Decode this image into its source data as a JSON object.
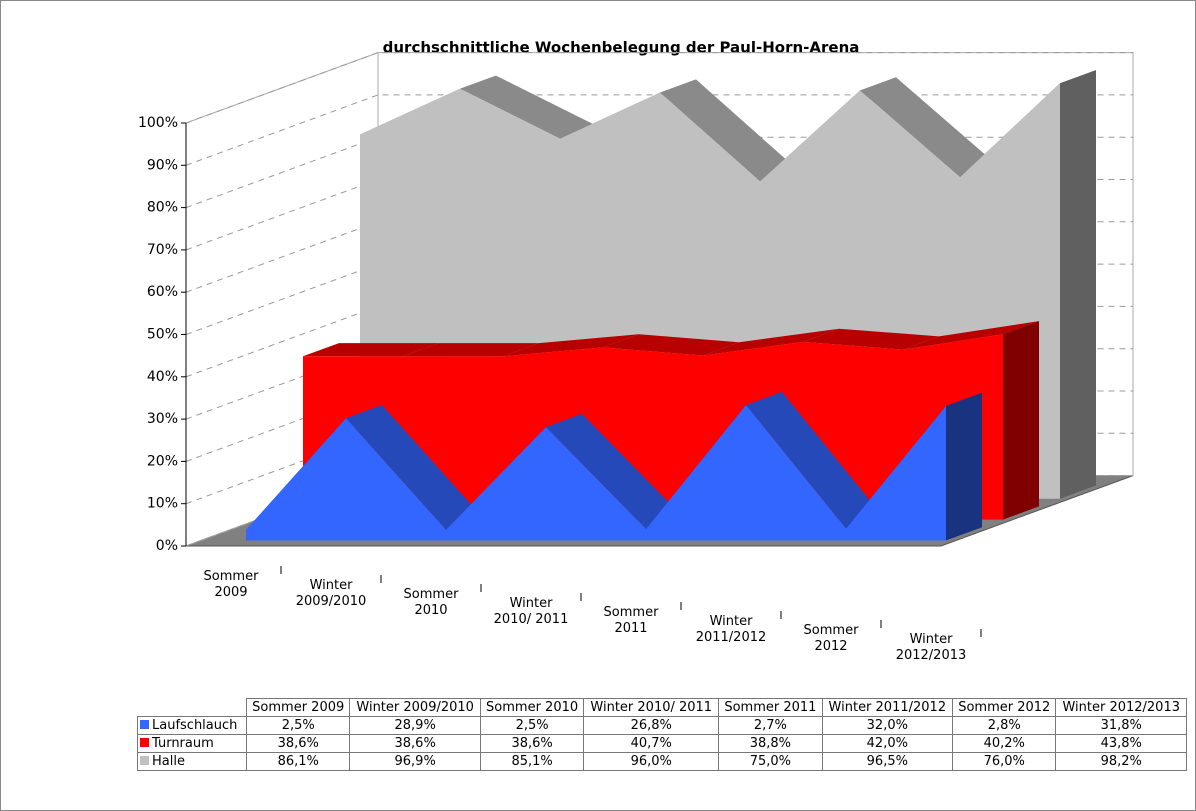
{
  "chart_data": {
    "type": "area3d",
    "title": "durchschnittliche Wochenbelegung der Paul-Horn-Arena",
    "categories": [
      "Sommer 2009",
      "Winter 2009/2010",
      "Sommer 2010",
      "Winter 2010/ 2011",
      "Sommer 2011",
      "Winter 2011/2012",
      "Sommer 2012",
      "Winter 2012/2013"
    ],
    "series": [
      {
        "name": "Laufschlauch",
        "color": "#3366ff",
        "values": [
          2.5,
          28.9,
          2.5,
          26.8,
          2.7,
          32.0,
          2.8,
          31.8
        ],
        "value_labels": [
          "2,5%",
          "28,9%",
          "2,5%",
          "26,8%",
          "2,7%",
          "32,0%",
          "2,8%",
          "31,8%"
        ]
      },
      {
        "name": "Turnraum",
        "color": "#ff0000",
        "values": [
          38.6,
          38.6,
          38.6,
          40.7,
          38.8,
          42.0,
          40.2,
          43.8
        ],
        "value_labels": [
          "38,6%",
          "38,6%",
          "38,6%",
          "40,7%",
          "38,8%",
          "42,0%",
          "40,2%",
          "43,8%"
        ]
      },
      {
        "name": "Halle",
        "color": "#c0c0c0",
        "values": [
          86.1,
          96.9,
          85.1,
          96.0,
          75.0,
          96.5,
          76.0,
          98.2
        ],
        "value_labels": [
          "86,1%",
          "96,9%",
          "85,1%",
          "96,0%",
          "75,0%",
          "96,5%",
          "76,0%",
          "98,2%"
        ]
      }
    ],
    "ylim": [
      0,
      100
    ],
    "yticks": [
      {
        "value": 0,
        "label": "0%"
      },
      {
        "value": 10,
        "label": "10%"
      },
      {
        "value": 20,
        "label": "20%"
      },
      {
        "value": 30,
        "label": "30%"
      },
      {
        "value": 40,
        "label": "40%"
      },
      {
        "value": 50,
        "label": "50%"
      },
      {
        "value": 60,
        "label": "60%"
      },
      {
        "value": 70,
        "label": "70%"
      },
      {
        "value": 80,
        "label": "80%"
      },
      {
        "value": 90,
        "label": "90%"
      },
      {
        "value": 100,
        "label": "100%"
      }
    ],
    "grid": true,
    "legend": "table"
  }
}
